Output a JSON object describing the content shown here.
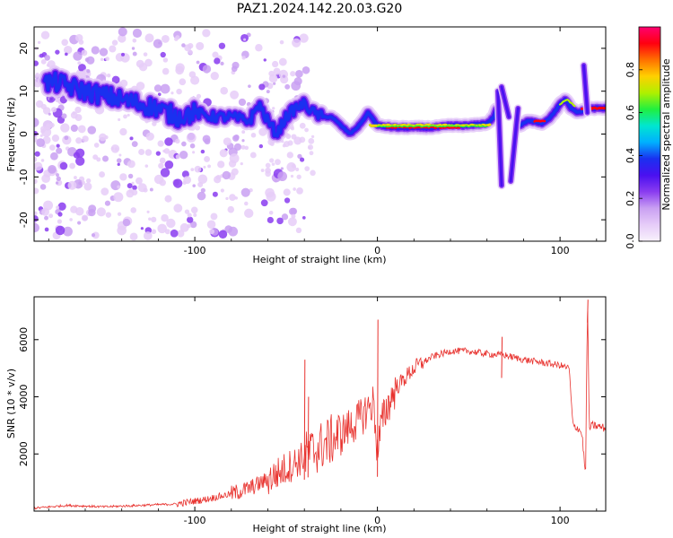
{
  "title": "PAZ1.2024.142.20.03.G20",
  "colors": {
    "snr_line": "#e8322e",
    "axes": "#000000",
    "background": "#ffffff"
  },
  "colormap": [
    "#f8f2fc",
    "#e6ccf8",
    "#c9a0f2",
    "#8a3cf0",
    "#4a10f0",
    "#1a30f0",
    "#00b0ff",
    "#00e6d0",
    "#20f040",
    "#b0f000",
    "#ffd000",
    "#ff7000",
    "#ff0010",
    "#ff0070"
  ],
  "chart_data": [
    {
      "type": "heatmap",
      "description": "spectrogram of frequency vs height of straight line, colored by normalized spectral amplitude",
      "xlabel": "Height of straight line (km)",
      "ylabel": "Frequency (Hz)",
      "xlim": [
        -188,
        125
      ],
      "ylim": [
        -25,
        25
      ],
      "xticks": [
        -100,
        0,
        100
      ],
      "yticks": [
        20,
        10,
        0,
        -10,
        -20
      ],
      "colorbar": {
        "label": "Normalized spectral amplitude",
        "range": [
          0.0,
          1.0
        ],
        "ticks": [
          "0.0",
          "0.2",
          "0.4",
          "0.6",
          "0.8"
        ]
      },
      "ridge": {
        "x": [
          -182,
          -175,
          -168,
          -160,
          -150,
          -140,
          -130,
          -120,
          -115,
          -110,
          -100,
          -90,
          -80,
          -70,
          -65,
          -60,
          -55,
          -50,
          -45,
          -40,
          -35,
          -30,
          -25,
          -20,
          -15,
          -10,
          -5,
          0,
          10,
          20,
          30,
          40,
          50,
          60,
          64,
          66
        ],
        "y": [
          12,
          12,
          11,
          10,
          9,
          8,
          7,
          6,
          5,
          4,
          5,
          4,
          4,
          3,
          7,
          3,
          0,
          4,
          6,
          7,
          5,
          4,
          4,
          2,
          0,
          2,
          5,
          2,
          1.5,
          1.5,
          1.5,
          2,
          2,
          2.5,
          4,
          7
        ]
      },
      "ridge2": {
        "x": [
          78,
          82,
          86,
          90,
          95,
          100,
          103,
          106,
          110,
          115,
          120,
          125
        ],
        "y": [
          2,
          3,
          3,
          2.5,
          4,
          7,
          8,
          6,
          5,
          6,
          6,
          6
        ]
      }
    },
    {
      "type": "line",
      "xlabel": "Height of straight line (km)",
      "ylabel": "SNR (10 * v/v)",
      "xlim": [
        -188,
        125
      ],
      "ylim": [
        0,
        7500
      ],
      "xticks": [
        -100,
        0,
        100
      ],
      "yticks": [
        2000,
        4000,
        6000
      ],
      "series": [
        {
          "x": [
            -188,
            -170,
            -150,
            -130,
            -110,
            -95,
            -80,
            -70,
            -60,
            -50,
            -40,
            -30,
            -20,
            -10,
            -5,
            -2,
            0,
            2,
            5,
            10,
            20,
            30,
            40,
            50,
            60,
            70,
            80,
            90,
            100,
            105,
            107,
            110,
            112,
            114,
            115,
            116,
            118,
            125
          ],
          "y": [
            100,
            200,
            150,
            200,
            250,
            400,
            600,
            800,
            1100,
            1500,
            1900,
            2300,
            2700,
            3200,
            3600,
            3800,
            2000,
            3000,
            3600,
            4300,
            5000,
            5400,
            5600,
            5600,
            5500,
            5450,
            5300,
            5200,
            5100,
            5000,
            3000,
            2900,
            2700,
            1200,
            7400,
            2900,
            3000,
            2900
          ]
        }
      ],
      "spikes": [
        {
          "x": -40,
          "y": 5300
        },
        {
          "x": -38,
          "y": 4000
        },
        {
          "x": 0,
          "y": 6700
        },
        {
          "x": 68,
          "y": 6100
        },
        {
          "x": 115,
          "y": 7400
        }
      ]
    }
  ]
}
